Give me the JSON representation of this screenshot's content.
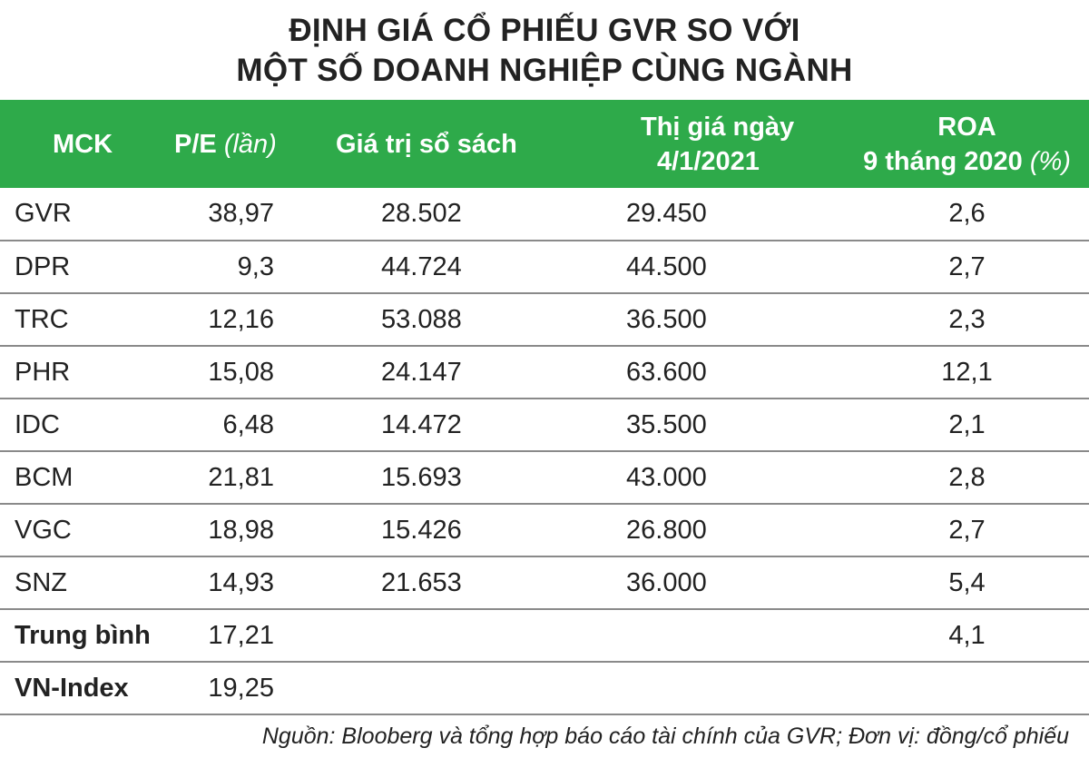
{
  "title": {
    "line1": "ĐỊNH GIÁ CỔ PHIẾU GVR SO VỚI",
    "line2": "MỘT SỐ DOANH NGHIỆP CÙNG NGÀNH"
  },
  "header": {
    "mck": "MCK",
    "pe": "P/E",
    "pe_unit": "(lần)",
    "book_value": "Giá trị sổ sách",
    "price_line1": "Thị giá ngày",
    "price_line2": "4/1/2021",
    "roa_line1": "ROA",
    "roa_line2": "9 tháng 2020",
    "roa_unit": "(%)"
  },
  "colors": {
    "header_bg": "#2eaa4a",
    "header_text": "#ffffff",
    "row_border": "#8a8a8a"
  },
  "rows": [
    {
      "mck": "GVR",
      "pe": "38,97",
      "book": "28.502",
      "price": "29.450",
      "roa": "2,6"
    },
    {
      "mck": "DPR",
      "pe": "9,3",
      "book": "44.724",
      "price": "44.500",
      "roa": "2,7"
    },
    {
      "mck": "TRC",
      "pe": "12,16",
      "book": "53.088",
      "price": "36.500",
      "roa": "2,3"
    },
    {
      "mck": "PHR",
      "pe": "15,08",
      "book": "24.147",
      "price": "63.600",
      "roa": "12,1"
    },
    {
      "mck": "IDC",
      "pe": "6,48",
      "book": "14.472",
      "price": "35.500",
      "roa": "2,1"
    },
    {
      "mck": "BCM",
      "pe": "21,81",
      "book": "15.693",
      "price": "43.000",
      "roa": "2,8"
    },
    {
      "mck": "VGC",
      "pe": "18,98",
      "book": "15.426",
      "price": "26.800",
      "roa": "2,7"
    },
    {
      "mck": "SNZ",
      "pe": "14,93",
      "book": "21.653",
      "price": "36.000",
      "roa": "5,4"
    }
  ],
  "summary": [
    {
      "mck": "Trung bình",
      "pe": "17,21",
      "book": "",
      "price": "",
      "roa": "4,1"
    },
    {
      "mck": "VN-Index",
      "pe": "19,25",
      "book": "",
      "price": "",
      "roa": ""
    }
  ],
  "source": "Nguồn: Blooberg và tổng hợp báo cáo tài chính của GVR; Đơn vị: đồng/cổ phiếu"
}
